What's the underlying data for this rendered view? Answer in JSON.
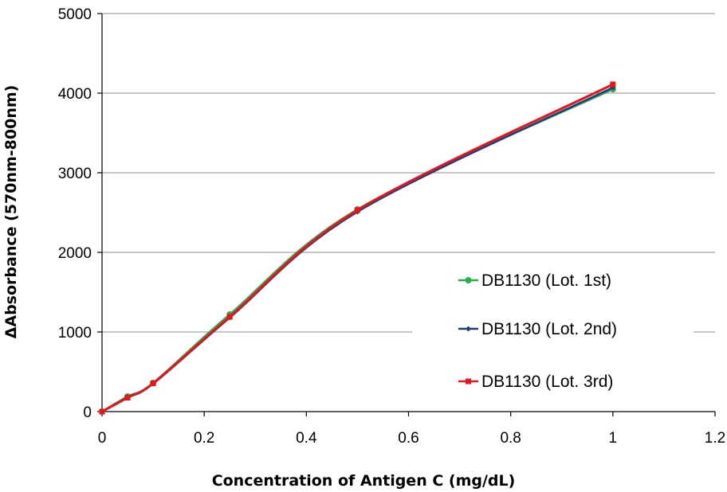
{
  "chart_data": {
    "type": "line",
    "title": "",
    "xlabel": "Concentration  of Antigen  C  (mg/dL)",
    "ylabel": "ΔAbsorbance (570nm-800nm)",
    "xlim": [
      0,
      1.2
    ],
    "ylim": [
      0,
      5000
    ],
    "xticks": [
      0,
      0.2,
      0.4,
      0.6,
      0.8,
      1,
      1.2
    ],
    "xtick_labels": [
      "0",
      "0.2",
      "0.4",
      "0.6",
      "0.8",
      "1",
      "1.2"
    ],
    "yticks": [
      0,
      1000,
      2000,
      3000,
      4000,
      5000
    ],
    "ytick_labels": [
      "0",
      "1000",
      "2000",
      "3000",
      "4000",
      "5000"
    ],
    "grid": "horizontal",
    "legend_position": "center-right",
    "series": [
      {
        "name": "DB1130 (Lot. 1st)",
        "color": "#1fb050",
        "marker": "circle",
        "x": [
          0,
          0.05,
          0.1,
          0.25,
          0.5,
          1.0
        ],
        "y": [
          0,
          190,
          360,
          1220,
          2540,
          4050
        ]
      },
      {
        "name": "DB1130 (Lot. 2nd)",
        "color": "#1f3f7a",
        "marker": "diamond",
        "x": [
          0,
          0.05,
          0.1,
          0.25,
          0.5,
          1.0
        ],
        "y": [
          0,
          180,
          350,
          1180,
          2510,
          4070
        ]
      },
      {
        "name": "DB1130 (Lot. 3rd)",
        "color": "#e8141c",
        "marker": "square",
        "x": [
          0,
          0.05,
          0.1,
          0.25,
          0.5,
          1.0
        ],
        "y": [
          0,
          175,
          355,
          1190,
          2530,
          4110
        ]
      }
    ]
  }
}
